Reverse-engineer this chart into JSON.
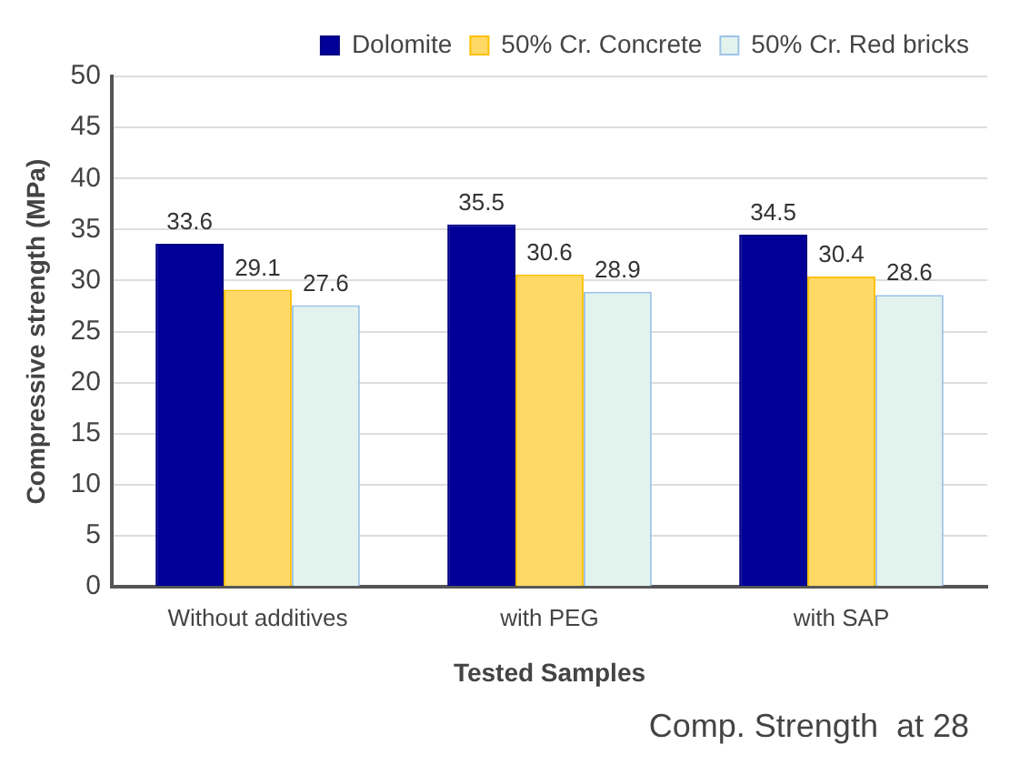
{
  "chart_data": {
    "type": "bar",
    "xlabel": "Tested Samples",
    "ylabel": "Compressive strength (MPa)",
    "categories": [
      "Without additives",
      "with PEG",
      "with SAP"
    ],
    "series": [
      {
        "name": "Dolomite",
        "color": "#000099",
        "values": [
          33.6,
          35.5,
          34.5
        ]
      },
      {
        "name": "50% Cr. Concrete",
        "color": "#ffd966",
        "values": [
          29.1,
          30.6,
          30.4
        ]
      },
      {
        "name": "50% Cr. Red bricks",
        "color": "#e2f3ee",
        "values": [
          27.6,
          28.9,
          28.6
        ]
      }
    ],
    "ylim": [
      0,
      50
    ],
    "yticks": [
      0,
      5,
      10,
      15,
      20,
      25,
      30,
      35,
      40,
      45,
      50
    ],
    "grid": "y",
    "legend": "top right",
    "data_labels": true,
    "annotations": [
      "Comp. Strength  at 28"
    ]
  }
}
